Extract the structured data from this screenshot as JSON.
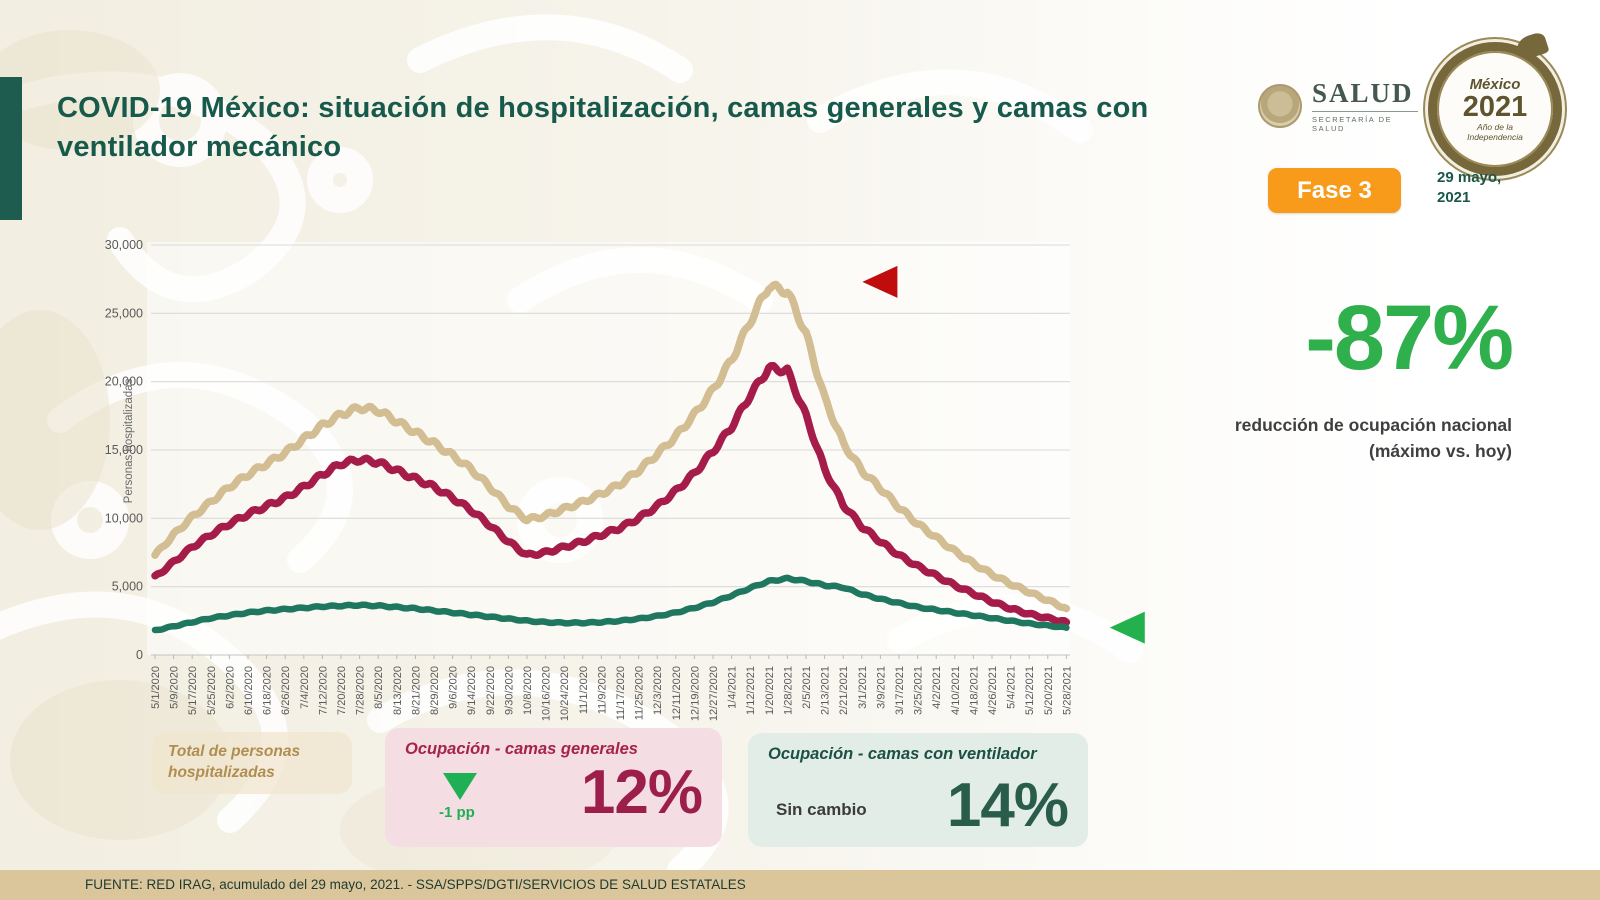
{
  "header": {
    "title": "COVID-19 México: situación de hospitalización, camas generales y camas con ventilador mecánico",
    "phase_badge": "Fase 3",
    "date_line1": "29 mayo,",
    "date_line2": "2021"
  },
  "logos": {
    "salud": {
      "name": "SALUD",
      "subtitle": "SECRETARÍA DE SALUD"
    },
    "mexico2021": {
      "line1": "México",
      "line2": "2021",
      "line3": "Año de la",
      "line4": "Independencia"
    }
  },
  "kpi": {
    "value": "-87%",
    "label_line1": "reducción de ocupación nacional",
    "label_line2": "(máximo vs. hoy)"
  },
  "chart_data": {
    "type": "line",
    "title": "",
    "xlabel": "",
    "ylabel": "Personas hospitalizadas",
    "ylim": [
      0,
      30000
    ],
    "grid": true,
    "legend_position": "none",
    "y_ticks": [
      [
        0,
        "0"
      ],
      [
        5000,
        "5,000"
      ],
      [
        10000,
        "10,000"
      ],
      [
        15000,
        "15,000"
      ],
      [
        20000,
        "20,000"
      ],
      [
        25000,
        "25,000"
      ],
      [
        30000,
        "30,000"
      ]
    ],
    "categories": [
      "5/1/2020",
      "5/9/2020",
      "5/17/2020",
      "5/25/2020",
      "6/2/2020",
      "6/10/2020",
      "6/18/2020",
      "6/26/2020",
      "7/4/2020",
      "7/12/2020",
      "7/20/2020",
      "7/28/2020",
      "8/5/2020",
      "8/13/2020",
      "8/21/2020",
      "8/29/2020",
      "9/6/2020",
      "9/14/2020",
      "9/22/2020",
      "9/30/2020",
      "10/8/2020",
      "10/16/2020",
      "10/24/2020",
      "11/1/2020",
      "11/9/2020",
      "11/17/2020",
      "11/25/2020",
      "12/3/2020",
      "12/11/2020",
      "12/19/2020",
      "12/27/2020",
      "1/4/2021",
      "1/12/2021",
      "1/20/2021",
      "1/28/2021",
      "2/5/2021",
      "2/13/2021",
      "2/21/2021",
      "3/1/2021",
      "3/9/2021",
      "3/17/2021",
      "3/25/2021",
      "4/2/2021",
      "4/10/2021",
      "4/18/2021",
      "4/26/2021",
      "5/4/2021",
      "5/12/2021",
      "5/20/2021",
      "5/28/2021"
    ],
    "series": [
      {
        "name": "Total de personas hospitalizadas",
        "color": "#d3bd92",
        "values": [
          7300,
          8800,
          10100,
          11200,
          12300,
          13200,
          14000,
          14800,
          15800,
          16800,
          17600,
          18100,
          17900,
          17100,
          16300,
          15500,
          14600,
          13600,
          12300,
          10900,
          9900,
          10200,
          10700,
          11200,
          11800,
          12500,
          13500,
          14700,
          16000,
          17600,
          19400,
          21600,
          24400,
          27000,
          26600,
          23500,
          18800,
          15500,
          13500,
          12200,
          10800,
          9600,
          8600,
          7600,
          6700,
          5900,
          5200,
          4600,
          4000,
          3400
        ]
      },
      {
        "name": "Ocupación - camas generales",
        "color": "#a51c4b",
        "values": [
          5700,
          6800,
          7900,
          8800,
          9600,
          10300,
          10900,
          11500,
          12300,
          13200,
          14000,
          14300,
          14100,
          13500,
          12900,
          12300,
          11500,
          10600,
          9500,
          8300,
          7300,
          7500,
          7900,
          8300,
          8800,
          9300,
          10000,
          10900,
          12000,
          13300,
          14900,
          16700,
          19000,
          21000,
          20800,
          17500,
          13600,
          11000,
          9400,
          8300,
          7300,
          6500,
          5800,
          5100,
          4500,
          3900,
          3400,
          3000,
          2700,
          2400
        ]
      },
      {
        "name": "Ocupación - camas con ventilador",
        "color": "#20775f",
        "values": [
          1800,
          2100,
          2400,
          2700,
          2900,
          3100,
          3250,
          3350,
          3450,
          3550,
          3600,
          3650,
          3600,
          3500,
          3400,
          3250,
          3100,
          2950,
          2800,
          2650,
          2500,
          2400,
          2350,
          2350,
          2400,
          2500,
          2650,
          2850,
          3100,
          3450,
          3850,
          4350,
          4900,
          5400,
          5600,
          5400,
          5100,
          4950,
          4450,
          4100,
          3800,
          3500,
          3300,
          3100,
          2900,
          2700,
          2500,
          2300,
          2150,
          2000
        ]
      }
    ],
    "annotations": [
      {
        "name": "peak-marker",
        "shape": "triangle-left",
        "color": "#c00c0c",
        "x_index": 39,
        "value": 27300
      },
      {
        "name": "current-level-marker",
        "shape": "triangle-left",
        "color": "#22b14c",
        "x_index": 52.3,
        "value": 2000
      }
    ]
  },
  "stat_boxes": [
    {
      "title": "Total de personas hospitalizadas"
    },
    {
      "title": "Ocupación - camas generales",
      "change_icon": "down-triangle",
      "change_label": "-1 pp",
      "value": "12%"
    },
    {
      "title": "Ocupación - camas con ventilador",
      "change_label": "Sin cambio",
      "value": "14%"
    }
  ],
  "footer": {
    "source": "FUENTE: RED IRAG, acumulado del 29 mayo, 2021. -  SSA/SPPS/DGTI/SERVICIOS DE SALUD ESTATALES"
  }
}
